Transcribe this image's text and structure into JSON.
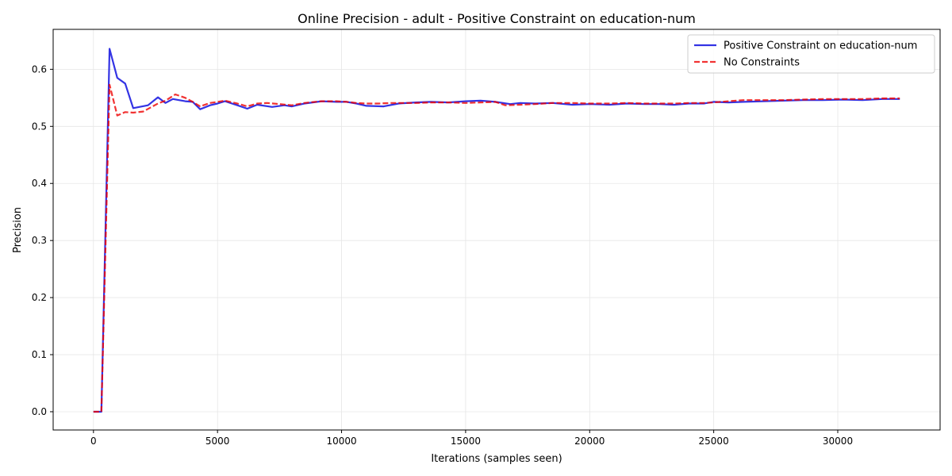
{
  "chart_data": {
    "type": "line",
    "title": "Online Precision - adult - Positive Constraint on education-num",
    "xlabel": "Iterations (samples seen)",
    "ylabel": "Precision",
    "xlim": [
      -1625,
      34125
    ],
    "ylim": [
      -0.032,
      0.67
    ],
    "xticks": [
      0,
      5000,
      10000,
      15000,
      20000,
      25000,
      30000
    ],
    "yticks": [
      0.0,
      0.1,
      0.2,
      0.3,
      0.4,
      0.5,
      0.6
    ],
    "xtick_labels": [
      "0",
      "5000",
      "10000",
      "15000",
      "20000",
      "25000",
      "30000"
    ],
    "ytick_labels": [
      "0.0",
      "0.1",
      "0.2",
      "0.3",
      "0.4",
      "0.5",
      "0.6"
    ],
    "grid": true,
    "legend_position": "top-right",
    "series": [
      {
        "name": "Positive Constraint on education-num",
        "color": "#0000dd",
        "style": "solid",
        "points": [
          [
            0,
            0
          ],
          [
            320,
            0
          ],
          [
            650,
            0.636
          ],
          [
            960,
            0.585
          ],
          [
            1280,
            0.575
          ],
          [
            1600,
            0.532
          ],
          [
            2200,
            0.537
          ],
          [
            2600,
            0.551
          ],
          [
            2900,
            0.541
          ],
          [
            3200,
            0.548
          ],
          [
            3700,
            0.544
          ],
          [
            4000,
            0.543
          ],
          [
            4300,
            0.53
          ],
          [
            4700,
            0.537
          ],
          [
            5000,
            0.54
          ],
          [
            5300,
            0.544
          ],
          [
            5800,
            0.537
          ],
          [
            6200,
            0.531
          ],
          [
            6600,
            0.538
          ],
          [
            7200,
            0.534
          ],
          [
            7700,
            0.537
          ],
          [
            8000,
            0.535
          ],
          [
            8500,
            0.54
          ],
          [
            9200,
            0.544
          ],
          [
            9800,
            0.543
          ],
          [
            10200,
            0.543
          ],
          [
            10600,
            0.54
          ],
          [
            11000,
            0.536
          ],
          [
            11700,
            0.535
          ],
          [
            12300,
            0.54
          ],
          [
            13000,
            0.542
          ],
          [
            13600,
            0.543
          ],
          [
            14300,
            0.542
          ],
          [
            15000,
            0.544
          ],
          [
            15600,
            0.545
          ],
          [
            16200,
            0.543
          ],
          [
            16800,
            0.539
          ],
          [
            17200,
            0.541
          ],
          [
            17800,
            0.54
          ],
          [
            18500,
            0.541
          ],
          [
            19300,
            0.538
          ],
          [
            20000,
            0.539
          ],
          [
            20800,
            0.538
          ],
          [
            21500,
            0.54
          ],
          [
            22200,
            0.539
          ],
          [
            22800,
            0.539
          ],
          [
            23400,
            0.538
          ],
          [
            24000,
            0.54
          ],
          [
            24600,
            0.54
          ],
          [
            25000,
            0.543
          ],
          [
            25600,
            0.542
          ],
          [
            26200,
            0.543
          ],
          [
            27000,
            0.544
          ],
          [
            27800,
            0.545
          ],
          [
            28600,
            0.546
          ],
          [
            29400,
            0.546
          ],
          [
            30200,
            0.547
          ],
          [
            31000,
            0.546
          ],
          [
            31800,
            0.548
          ],
          [
            32500,
            0.548
          ]
        ]
      },
      {
        "name": "No Constraints",
        "color": "#ee0000",
        "style": "dashed",
        "points": [
          [
            0,
            0
          ],
          [
            320,
            0
          ],
          [
            650,
            0.573
          ],
          [
            960,
            0.519
          ],
          [
            1280,
            0.525
          ],
          [
            1600,
            0.524
          ],
          [
            2000,
            0.526
          ],
          [
            2600,
            0.54
          ],
          [
            2900,
            0.545
          ],
          [
            3300,
            0.556
          ],
          [
            3700,
            0.55
          ],
          [
            4000,
            0.543
          ],
          [
            4300,
            0.535
          ],
          [
            4700,
            0.541
          ],
          [
            5000,
            0.543
          ],
          [
            5300,
            0.545
          ],
          [
            5800,
            0.54
          ],
          [
            6200,
            0.535
          ],
          [
            6600,
            0.54
          ],
          [
            7000,
            0.541
          ],
          [
            7500,
            0.539
          ],
          [
            8000,
            0.537
          ],
          [
            8500,
            0.541
          ],
          [
            9200,
            0.544
          ],
          [
            9800,
            0.544
          ],
          [
            10200,
            0.543
          ],
          [
            10600,
            0.541
          ],
          [
            11000,
            0.54
          ],
          [
            11500,
            0.54
          ],
          [
            12000,
            0.541
          ],
          [
            12600,
            0.541
          ],
          [
            13000,
            0.541
          ],
          [
            13600,
            0.542
          ],
          [
            14300,
            0.542
          ],
          [
            15000,
            0.541
          ],
          [
            15600,
            0.542
          ],
          [
            16200,
            0.543
          ],
          [
            16600,
            0.537
          ],
          [
            17200,
            0.538
          ],
          [
            17800,
            0.539
          ],
          [
            18500,
            0.541
          ],
          [
            19300,
            0.541
          ],
          [
            20000,
            0.54
          ],
          [
            20800,
            0.54
          ],
          [
            21500,
            0.541
          ],
          [
            22200,
            0.54
          ],
          [
            22800,
            0.54
          ],
          [
            23400,
            0.54
          ],
          [
            24000,
            0.541
          ],
          [
            24600,
            0.541
          ],
          [
            25000,
            0.542
          ],
          [
            25600,
            0.544
          ],
          [
            26200,
            0.546
          ],
          [
            27000,
            0.546
          ],
          [
            27800,
            0.546
          ],
          [
            28600,
            0.547
          ],
          [
            29400,
            0.548
          ],
          [
            30200,
            0.548
          ],
          [
            31000,
            0.548
          ],
          [
            31800,
            0.549
          ],
          [
            32500,
            0.549
          ]
        ]
      }
    ]
  }
}
